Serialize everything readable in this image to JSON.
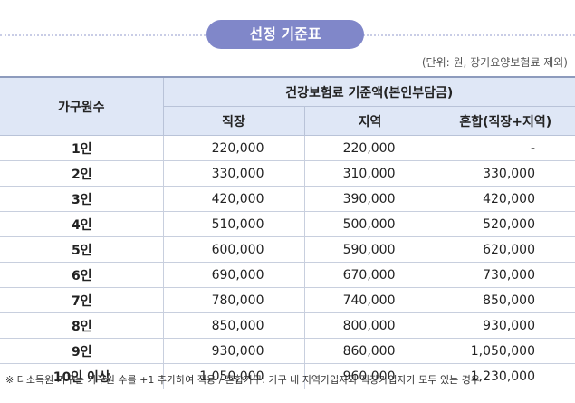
{
  "header": {
    "title": "선정 기준표",
    "unit": "(단위: 원, 장기요양보험료 제외)"
  },
  "table": {
    "header": [
      "가구원수",
      "건강보험료 기준액(본인부담금)"
    ],
    "subheader": [
      "직장",
      "지역",
      "혼합(직장+지역)"
    ],
    "rows": [
      [
        "1인",
        "220,000",
        "220,000",
        "-"
      ],
      [
        "2인",
        "330,000",
        "310,000",
        "330,000"
      ],
      [
        "3인",
        "420,000",
        "390,000",
        "420,000"
      ],
      [
        "4인",
        "510,000",
        "500,000",
        "520,000"
      ],
      [
        "5인",
        "600,000",
        "590,000",
        "620,000"
      ],
      [
        "6인",
        "690,000",
        "670,000",
        "730,000"
      ],
      [
        "7인",
        "780,000",
        "740,000",
        "850,000"
      ],
      [
        "8인",
        "850,000",
        "800,000",
        "930,000"
      ],
      [
        "9인",
        "930,000",
        "860,000",
        "1,050,000"
      ],
      [
        "10인 이상",
        "1,050,000",
        "960,000",
        "1,230,000"
      ]
    ]
  },
  "footnote": "※ 다소득원 가구는 가구원 수를 +1 추가하여 적용 / 혼합가구: 가구 내 지역가입자와 직장가입자가 모두 있는 경우"
}
